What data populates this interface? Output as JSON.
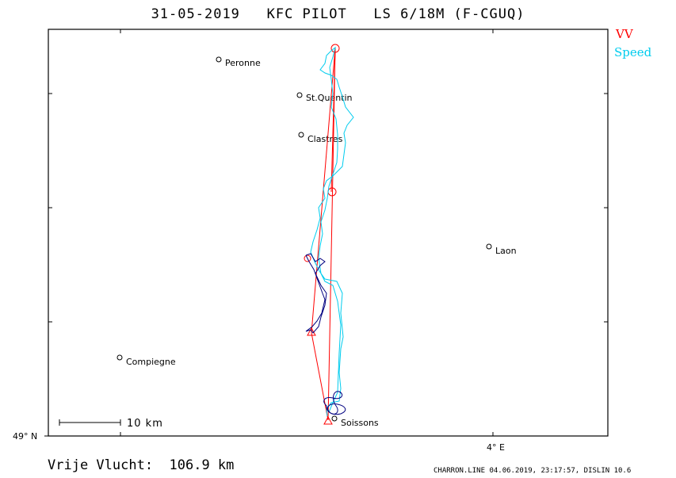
{
  "header": {
    "title": "31-05-2019   KFC PILOT   LS 6/18M (F-CGUQ)"
  },
  "legend": {
    "vv_label": "VV",
    "vv_color": "#ff0000",
    "speed_label": "Speed",
    "speed_color": "#00ccee"
  },
  "axes": {
    "lat_label": "49° N",
    "lon_label": "4° E"
  },
  "scale_bar": {
    "label": "10 km"
  },
  "places": [
    {
      "name": "Peronne"
    },
    {
      "name": "St.Quentin"
    },
    {
      "name": "Clastres"
    },
    {
      "name": "Laon"
    },
    {
      "name": "Compiegne"
    },
    {
      "name": "Soissons"
    }
  ],
  "footer": {
    "distance_text": "Vrije Vlucht:  106.9 km",
    "info_text": "CHARRON.LINE 04.06.2019, 23:17:57, DISLIN 10.6"
  },
  "track": {
    "color_speed": "#00ccee",
    "color_climb": "#000080",
    "color_task": "#ff0000"
  }
}
